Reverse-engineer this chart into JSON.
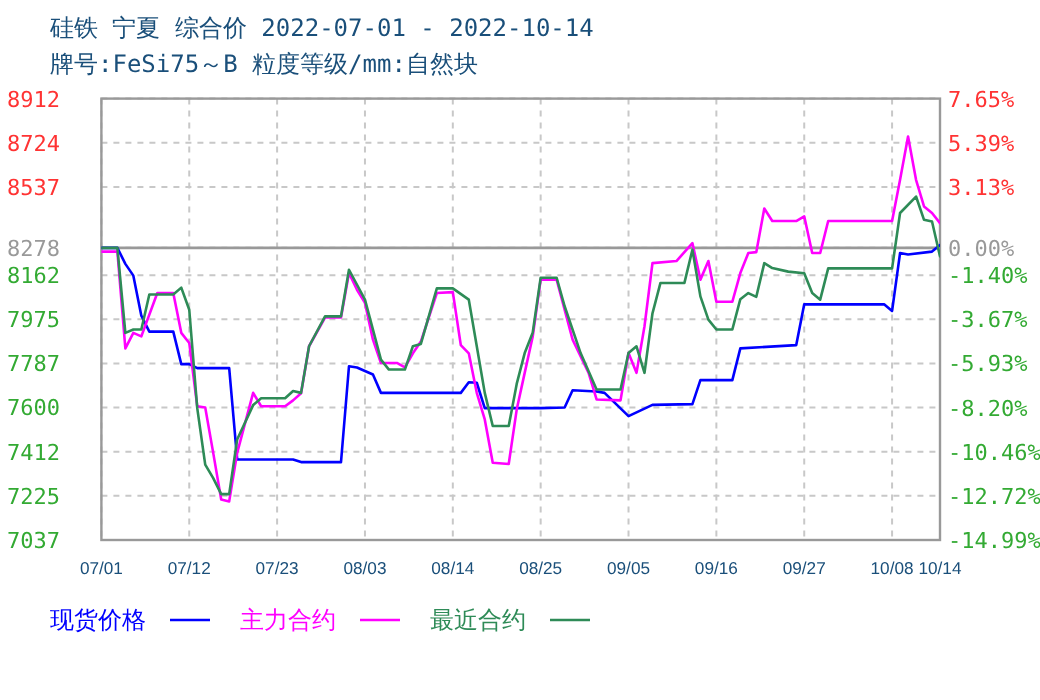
{
  "chart_data": {
    "type": "line",
    "title": "硅铁 宁夏 综合价 2022-07-01 - 2022-10-14",
    "subtitle": "牌号:FeSi75～B 粒度等级/mm:自然块",
    "xlim": [
      "2022-07-01",
      "2022-10-14"
    ],
    "xticks": [
      {
        "value": "2022-07-01",
        "label": "07/01"
      },
      {
        "value": "2022-07-12",
        "label": "07/12"
      },
      {
        "value": "2022-07-23",
        "label": "07/23"
      },
      {
        "value": "2022-08-03",
        "label": "08/03"
      },
      {
        "value": "2022-08-14",
        "label": "08/14"
      },
      {
        "value": "2022-08-25",
        "label": "08/25"
      },
      {
        "value": "2022-09-05",
        "label": "09/05"
      },
      {
        "value": "2022-09-16",
        "label": "09/16"
      },
      {
        "value": "2022-09-27",
        "label": "09/27"
      },
      {
        "value": "2022-10-08",
        "label": "10/08"
      },
      {
        "value": "2022-10-14",
        "label": "10/14"
      }
    ],
    "ylim": [
      7037,
      8912
    ],
    "yticks": [
      7037,
      7225,
      7412,
      7600,
      7787,
      7975,
      8162,
      8278,
      8537,
      8724,
      8912
    ],
    "y2lim": [
      -14.99,
      7.65
    ],
    "y2ticks": [
      {
        "value": -14.99,
        "label": "-14.99%"
      },
      {
        "value": -12.72,
        "label": "-12.72%"
      },
      {
        "value": -10.46,
        "label": "-10.46%"
      },
      {
        "value": -8.2,
        "label": "-8.20%"
      },
      {
        "value": -5.93,
        "label": "-5.93%"
      },
      {
        "value": -3.67,
        "label": "-3.67%"
      },
      {
        "value": -1.4,
        "label": "-1.40%"
      },
      {
        "value": 0,
        "label": "0.00%"
      },
      {
        "value": 3.13,
        "label": "3.13%"
      },
      {
        "value": 5.39,
        "label": "5.39%"
      },
      {
        "value": 7.65,
        "label": "7.65%"
      }
    ],
    "grid": true,
    "legend": "bottom",
    "line_style": "solid",
    "marker": "none",
    "ref_lines": [
      {
        "axis": "y",
        "value": 8278,
        "color": "#999999"
      }
    ],
    "series": [
      {
        "name": "现货价格",
        "color": "#0000ff",
        "x": [
          "2022-07-01",
          "2022-07-03",
          "2022-07-04",
          "2022-07-05",
          "2022-07-06",
          "2022-07-07",
          "2022-07-10",
          "2022-07-11",
          "2022-07-12",
          "2022-07-13",
          "2022-07-17",
          "2022-07-18",
          "2022-07-25",
          "2022-07-26",
          "2022-07-31",
          "2022-08-01",
          "2022-08-02",
          "2022-08-04",
          "2022-08-05",
          "2022-08-15",
          "2022-08-16",
          "2022-08-17",
          "2022-08-18",
          "2022-08-25",
          "2022-08-28",
          "2022-08-29",
          "2022-09-01",
          "2022-09-02",
          "2022-09-05",
          "2022-09-08",
          "2022-09-13",
          "2022-09-14",
          "2022-09-18",
          "2022-09-19",
          "2022-09-26",
          "2022-09-27",
          "2022-10-07",
          "2022-10-08",
          "2022-10-09",
          "2022-10-10",
          "2022-10-13",
          "2022-10-14"
        ],
        "values": [
          8278,
          8278,
          8210,
          8160,
          7990,
          7922,
          7922,
          7784,
          7784,
          7767,
          7767,
          7379,
          7379,
          7368,
          7368,
          7775,
          7770,
          7740,
          7662,
          7662,
          7707,
          7705,
          7597,
          7597,
          7600,
          7673,
          7668,
          7662,
          7563,
          7611,
          7614,
          7716,
          7716,
          7851,
          7865,
          8038,
          8038,
          8010,
          8256,
          8250,
          8262,
          8290
        ]
      },
      {
        "name": "主力合约",
        "color": "#ff00ff",
        "x": [
          "2022-07-01",
          "2022-07-03",
          "2022-07-04",
          "2022-07-05",
          "2022-07-06",
          "2022-07-08",
          "2022-07-10",
          "2022-07-11",
          "2022-07-12",
          "2022-07-13",
          "2022-07-14",
          "2022-07-15",
          "2022-07-16",
          "2022-07-17",
          "2022-07-18",
          "2022-07-20",
          "2022-07-21",
          "2022-07-24",
          "2022-07-25",
          "2022-07-26",
          "2022-07-27",
          "2022-07-29",
          "2022-07-31",
          "2022-08-01",
          "2022-08-02",
          "2022-08-03",
          "2022-08-04",
          "2022-08-05",
          "2022-08-07",
          "2022-08-08",
          "2022-08-09",
          "2022-08-10",
          "2022-08-12",
          "2022-08-14",
          "2022-08-15",
          "2022-08-16",
          "2022-08-17",
          "2022-08-18",
          "2022-08-19",
          "2022-08-21",
          "2022-08-22",
          "2022-08-23",
          "2022-08-24",
          "2022-08-25",
          "2022-08-27",
          "2022-08-29",
          "2022-08-31",
          "2022-09-01",
          "2022-09-04",
          "2022-09-05",
          "2022-09-06",
          "2022-09-07",
          "2022-09-08",
          "2022-09-11",
          "2022-09-13",
          "2022-09-14",
          "2022-09-15",
          "2022-09-16",
          "2022-09-18",
          "2022-09-19",
          "2022-09-20",
          "2022-09-21",
          "2022-09-22",
          "2022-09-23",
          "2022-09-26",
          "2022-09-27",
          "2022-09-28",
          "2022-09-29",
          "2022-09-30",
          "2022-10-08",
          "2022-10-09",
          "2022-10-10",
          "2022-10-11",
          "2022-10-12",
          "2022-10-13",
          "2022-10-14"
        ],
        "values": [
          8262,
          8262,
          7851,
          7917,
          7902,
          8086,
          8086,
          7917,
          7874,
          7605,
          7600,
          7407,
          7209,
          7201,
          7407,
          7662,
          7605,
          7605,
          7630,
          7660,
          7860,
          7982,
          7982,
          8171,
          8100,
          8044,
          7888,
          7789,
          7789,
          7770,
          7830,
          7880,
          8086,
          8090,
          7865,
          7830,
          7662,
          7549,
          7365,
          7360,
          7591,
          7747,
          7900,
          8143,
          8143,
          7888,
          7747,
          7634,
          7630,
          7831,
          7747,
          7945,
          8213,
          8222,
          8298,
          8143,
          8222,
          8049,
          8049,
          8171,
          8256,
          8260,
          8445,
          8392,
          8392,
          8412,
          8256,
          8256,
          8392,
          8392,
          8567,
          8751,
          8567,
          8454,
          8426,
          8383
        ]
      },
      {
        "name": "最近合约",
        "color": "#2e8b57",
        "x": [
          "2022-07-01",
          "2022-07-03",
          "2022-07-04",
          "2022-07-05",
          "2022-07-06",
          "2022-07-07",
          "2022-07-10",
          "2022-07-11",
          "2022-07-12",
          "2022-07-13",
          "2022-07-14",
          "2022-07-15",
          "2022-07-16",
          "2022-07-17",
          "2022-07-18",
          "2022-07-20",
          "2022-07-21",
          "2022-07-24",
          "2022-07-25",
          "2022-07-26",
          "2022-07-27",
          "2022-07-29",
          "2022-07-31",
          "2022-08-01",
          "2022-08-03",
          "2022-08-05",
          "2022-08-06",
          "2022-08-08",
          "2022-08-09",
          "2022-08-10",
          "2022-08-12",
          "2022-08-14",
          "2022-08-16",
          "2022-08-17",
          "2022-08-18",
          "2022-08-19",
          "2022-08-21",
          "2022-08-22",
          "2022-08-23",
          "2022-08-24",
          "2022-08-25",
          "2022-08-27",
          "2022-08-28",
          "2022-08-30",
          "2022-09-01",
          "2022-09-04",
          "2022-09-05",
          "2022-09-06",
          "2022-09-07",
          "2022-09-08",
          "2022-09-09",
          "2022-09-12",
          "2022-09-13",
          "2022-09-14",
          "2022-09-15",
          "2022-09-16",
          "2022-09-18",
          "2022-09-19",
          "2022-09-20",
          "2022-09-21",
          "2022-09-22",
          "2022-09-23",
          "2022-09-25",
          "2022-09-27",
          "2022-09-28",
          "2022-09-29",
          "2022-09-30",
          "2022-10-08",
          "2022-10-09",
          "2022-10-11",
          "2022-10-12",
          "2022-10-13",
          "2022-10-14"
        ],
        "values": [
          8278,
          8278,
          7917,
          7931,
          7931,
          8080,
          8080,
          8109,
          8015,
          7597,
          7357,
          7300,
          7232,
          7232,
          7464,
          7610,
          7639,
          7639,
          7670,
          7662,
          7860,
          7987,
          7987,
          8185,
          8058,
          7803,
          7761,
          7761,
          7860,
          7870,
          8106,
          8106,
          8058,
          7860,
          7662,
          7521,
          7521,
          7700,
          7831,
          7917,
          8151,
          8151,
          8030,
          7831,
          7676,
          7676,
          7831,
          7860,
          7747,
          8000,
          8129,
          8129,
          8270,
          8072,
          7973,
          7931,
          7931,
          8060,
          8086,
          8070,
          8213,
          8192,
          8177,
          8170,
          8086,
          8058,
          8191,
          8191,
          8426,
          8496,
          8397,
          8390,
          8242
        ]
      }
    ]
  }
}
